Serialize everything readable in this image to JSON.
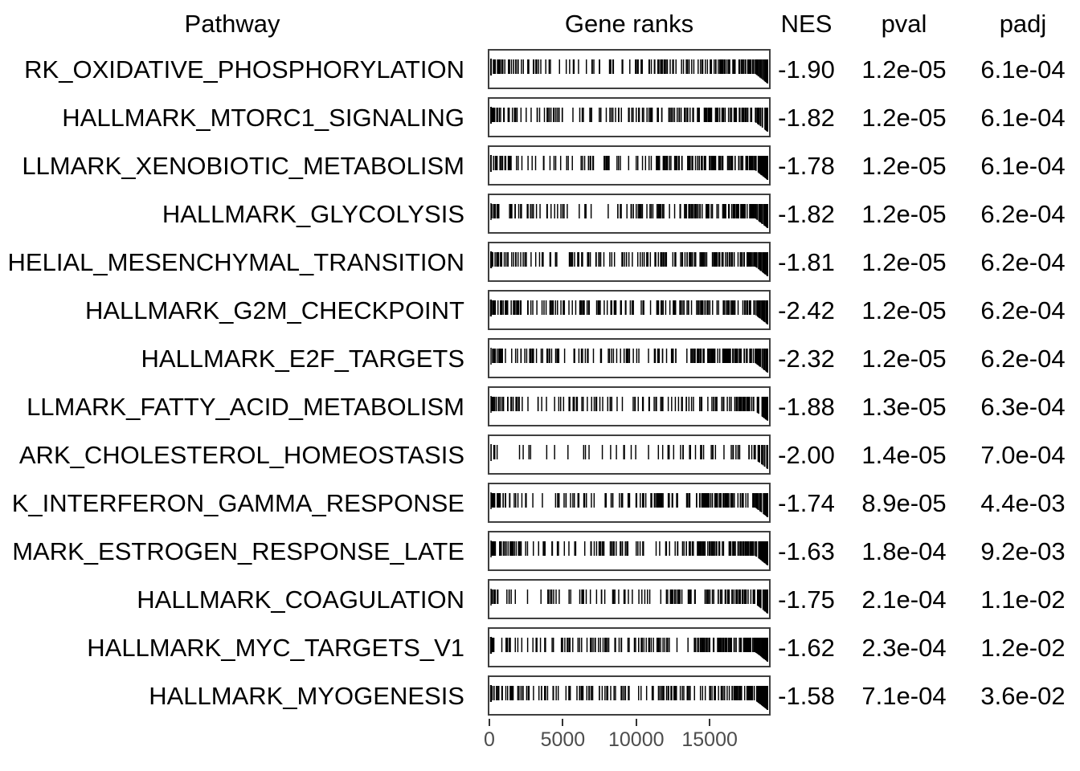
{
  "chart_data": {
    "type": "table",
    "description": "GSEA (fgsea) enrichment results table: each row shows a pathway, a rug plot of its gene positions in the ranked list, and enrichment statistics",
    "columns": [
      "Pathway",
      "Gene ranks",
      "NES",
      "pval",
      "padj"
    ],
    "x_axis": {
      "applies_to": "Gene ranks",
      "ticks": [
        0,
        5000,
        10000,
        15000
      ],
      "range": [
        0,
        19150
      ],
      "grid": false
    },
    "style": {
      "rug_mark_color": "#000000",
      "panel_border_color": "#3f3f3f",
      "axis_label_color": "#4d4d4d",
      "axis_tick_color": "#333333",
      "text_color": "#000000"
    },
    "rows": [
      {
        "pathway": "RK_OXIDATIVE_PHOSPHORYLATION",
        "nes": "-1.90",
        "pval": "1.2e-05",
        "padj": "6.1e-04",
        "rug": {
          "n_marks": 190,
          "seed": 11,
          "distribution": "right-dense"
        }
      },
      {
        "pathway": "HALLMARK_MTORC1_SIGNALING",
        "nes": "-1.82",
        "pval": "1.2e-05",
        "padj": "6.1e-04",
        "rug": {
          "n_marks": 200,
          "seed": 22,
          "distribution": "right-dense"
        }
      },
      {
        "pathway": "LLMARK_XENOBIOTIC_METABOLISM",
        "nes": "-1.78",
        "pval": "1.2e-05",
        "padj": "6.1e-04",
        "rug": {
          "n_marks": 195,
          "seed": 33,
          "distribution": "right-dense"
        }
      },
      {
        "pathway": "HALLMARK_GLYCOLYSIS",
        "nes": "-1.82",
        "pval": "1.2e-05",
        "padj": "6.2e-04",
        "rug": {
          "n_marks": 190,
          "seed": 44,
          "distribution": "right-dense"
        }
      },
      {
        "pathway": "HELIAL_MESENCHYMAL_TRANSITION",
        "nes": "-1.81",
        "pval": "1.2e-05",
        "padj": "6.2e-04",
        "rug": {
          "n_marks": 195,
          "seed": 55,
          "distribution": "right-dense"
        }
      },
      {
        "pathway": "HALLMARK_G2M_CHECKPOINT",
        "nes": "-2.42",
        "pval": "1.2e-05",
        "padj": "6.2e-04",
        "rug": {
          "n_marks": 195,
          "seed": 66,
          "distribution": "right-dense"
        }
      },
      {
        "pathway": "HALLMARK_E2F_TARGETS",
        "nes": "-2.32",
        "pval": "1.2e-05",
        "padj": "6.2e-04",
        "rug": {
          "n_marks": 195,
          "seed": 77,
          "distribution": "right-dense"
        }
      },
      {
        "pathway": "LLMARK_FATTY_ACID_METABOLISM",
        "nes": "-1.88",
        "pval": "1.3e-05",
        "padj": "6.3e-04",
        "rug": {
          "n_marks": 155,
          "seed": 88,
          "distribution": "right-dense"
        }
      },
      {
        "pathway": "ARK_CHOLESTEROL_HOMEOSTASIS",
        "nes": "-2.00",
        "pval": "1.4e-05",
        "padj": "7.0e-04",
        "rug": {
          "n_marks": 72,
          "seed": 99,
          "distribution": "right-dense-sparse"
        }
      },
      {
        "pathway": "K_INTERFERON_GAMMA_RESPONSE",
        "nes": "-1.74",
        "pval": "8.9e-05",
        "padj": "4.4e-03",
        "rug": {
          "n_marks": 190,
          "seed": 110,
          "distribution": "right-dense"
        }
      },
      {
        "pathway": "MARK_ESTROGEN_RESPONSE_LATE",
        "nes": "-1.63",
        "pval": "1.8e-04",
        "padj": "9.2e-03",
        "rug": {
          "n_marks": 195,
          "seed": 121,
          "distribution": "right-dense"
        }
      },
      {
        "pathway": "HALLMARK_COAGULATION",
        "nes": "-1.75",
        "pval": "2.1e-04",
        "padj": "1.1e-02",
        "rug": {
          "n_marks": 135,
          "seed": 132,
          "distribution": "right-dense"
        }
      },
      {
        "pathway": "HALLMARK_MYC_TARGETS_V1",
        "nes": "-1.62",
        "pval": "2.3e-04",
        "padj": "1.2e-02",
        "rug": {
          "n_marks": 195,
          "seed": 143,
          "distribution": "right-dense"
        }
      },
      {
        "pathway": "HALLMARK_MYOGENESIS",
        "nes": "-1.58",
        "pval": "7.1e-04",
        "padj": "3.6e-02",
        "rug": {
          "n_marks": 200,
          "seed": 154,
          "distribution": "right-dense"
        }
      }
    ]
  }
}
